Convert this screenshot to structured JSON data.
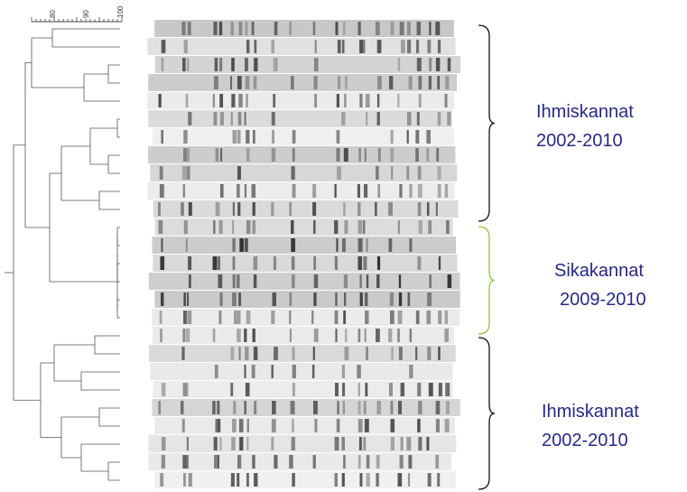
{
  "scale": {
    "ticks": [
      "80",
      "90",
      "100"
    ]
  },
  "groups": [
    {
      "label": "Ihmiskannat",
      "years": "2002-2010"
    },
    {
      "label": "Sikakannat",
      "years": "2009-2010"
    },
    {
      "label": "Ihmiskannat",
      "years": "2002-2010"
    }
  ]
}
